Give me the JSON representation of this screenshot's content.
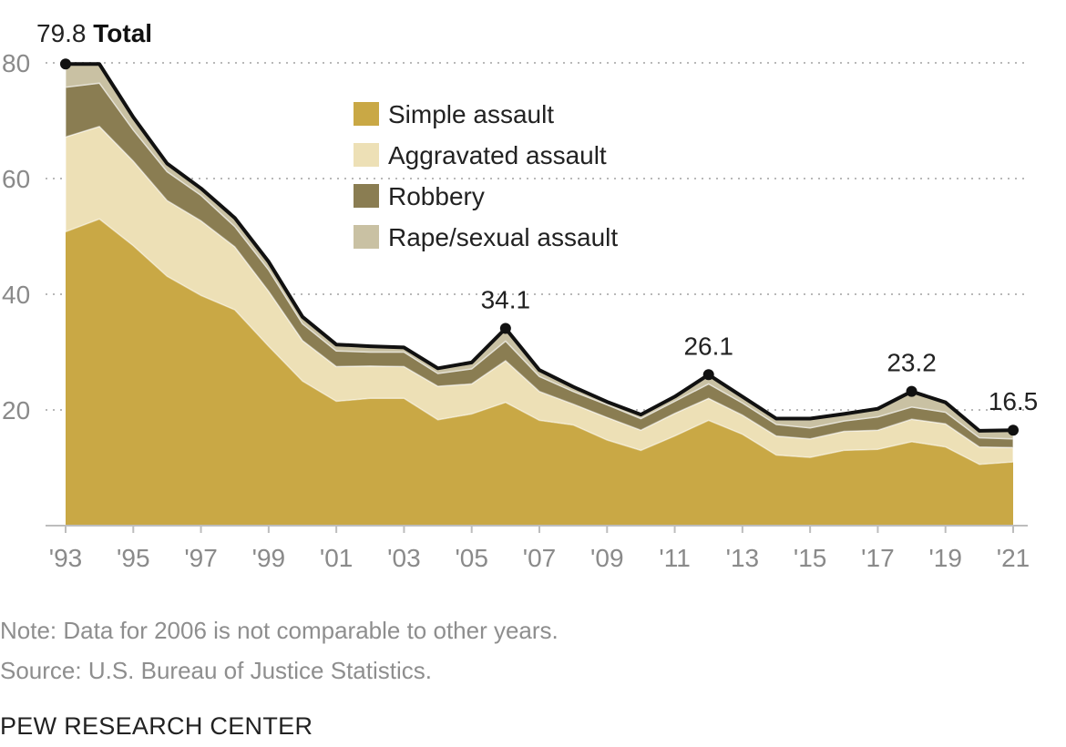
{
  "notes": {
    "note": "Note: Data for 2006 is not comparable to other years.",
    "source": "Source: U.S. Bureau of Justice Statistics."
  },
  "brand": "PEW RESEARCH CENTER",
  "chart_data": {
    "type": "area",
    "stacked": true,
    "x": [
      1993,
      1994,
      1995,
      1996,
      1997,
      1998,
      1999,
      2000,
      2001,
      2002,
      2003,
      2004,
      2005,
      2006,
      2007,
      2008,
      2009,
      2010,
      2011,
      2012,
      2013,
      2014,
      2015,
      2016,
      2017,
      2018,
      2019,
      2020,
      2021
    ],
    "x_tick_labels": [
      "'93",
      "'95",
      "'97",
      "'99",
      "'01",
      "'03",
      "'05",
      "'07",
      "'09",
      "'11",
      "'13",
      "'15",
      "'17",
      "'19",
      "'21"
    ],
    "x_tick_values": [
      1993,
      1995,
      1997,
      1999,
      2001,
      2003,
      2005,
      2007,
      2009,
      2011,
      2013,
      2015,
      2017,
      2019,
      2021
    ],
    "ylim": [
      0,
      80
    ],
    "y_ticks": [
      20,
      40,
      60,
      80
    ],
    "grid": true,
    "legend_position": "top-center",
    "series": [
      {
        "name": "Simple assault",
        "color": "#C9A845",
        "values": [
          50.8,
          53.0,
          48.4,
          43.1,
          39.8,
          37.3,
          31.0,
          25.0,
          21.5,
          22.0,
          22.0,
          18.3,
          19.3,
          21.3,
          18.2,
          17.4,
          14.8,
          13.0,
          15.5,
          18.2,
          15.8,
          12.2,
          11.8,
          13.0,
          13.2,
          14.5,
          13.6,
          10.6,
          11.0
        ]
      },
      {
        "name": "Aggravated assault",
        "color": "#EDE0B6",
        "values": [
          16.4,
          16.0,
          14.6,
          13.1,
          12.9,
          10.9,
          9.5,
          7.0,
          6.0,
          5.6,
          5.5,
          5.8,
          5.2,
          7.2,
          5.0,
          3.6,
          3.9,
          3.5,
          3.9,
          3.8,
          3.3,
          3.3,
          3.2,
          3.3,
          3.3,
          3.9,
          4.0,
          3.0,
          2.5
        ]
      },
      {
        "name": "Robbery",
        "color": "#8A7D52",
        "values": [
          8.6,
          7.5,
          5.4,
          5.0,
          4.4,
          3.5,
          3.7,
          2.9,
          2.7,
          2.4,
          2.5,
          2.2,
          2.6,
          3.4,
          2.6,
          2.2,
          2.2,
          2.0,
          2.1,
          2.5,
          2.1,
          2.0,
          1.9,
          1.8,
          2.3,
          2.1,
          2.0,
          1.6,
          1.5
        ]
      },
      {
        "name": "Rape/sexual assault",
        "color": "#C9C1A3",
        "values": [
          4.0,
          3.3,
          2.2,
          1.4,
          1.2,
          1.5,
          1.4,
          1.2,
          1.1,
          1.0,
          0.8,
          0.9,
          1.1,
          2.2,
          1.1,
          0.8,
          0.5,
          0.7,
          0.8,
          1.6,
          1.1,
          1.0,
          1.6,
          1.2,
          1.4,
          2.7,
          1.7,
          1.2,
          1.5
        ]
      }
    ],
    "total_label": "Total",
    "callouts": [
      {
        "x": 1993,
        "value": 79.8,
        "label": "79.8",
        "suffix": "Total"
      },
      {
        "x": 2006,
        "value": 34.1,
        "label": "34.1"
      },
      {
        "x": 2012,
        "value": 26.1,
        "label": "26.1"
      },
      {
        "x": 2018,
        "value": 23.2,
        "label": "23.2"
      },
      {
        "x": 2021,
        "value": 16.5,
        "label": "16.5"
      }
    ]
  }
}
